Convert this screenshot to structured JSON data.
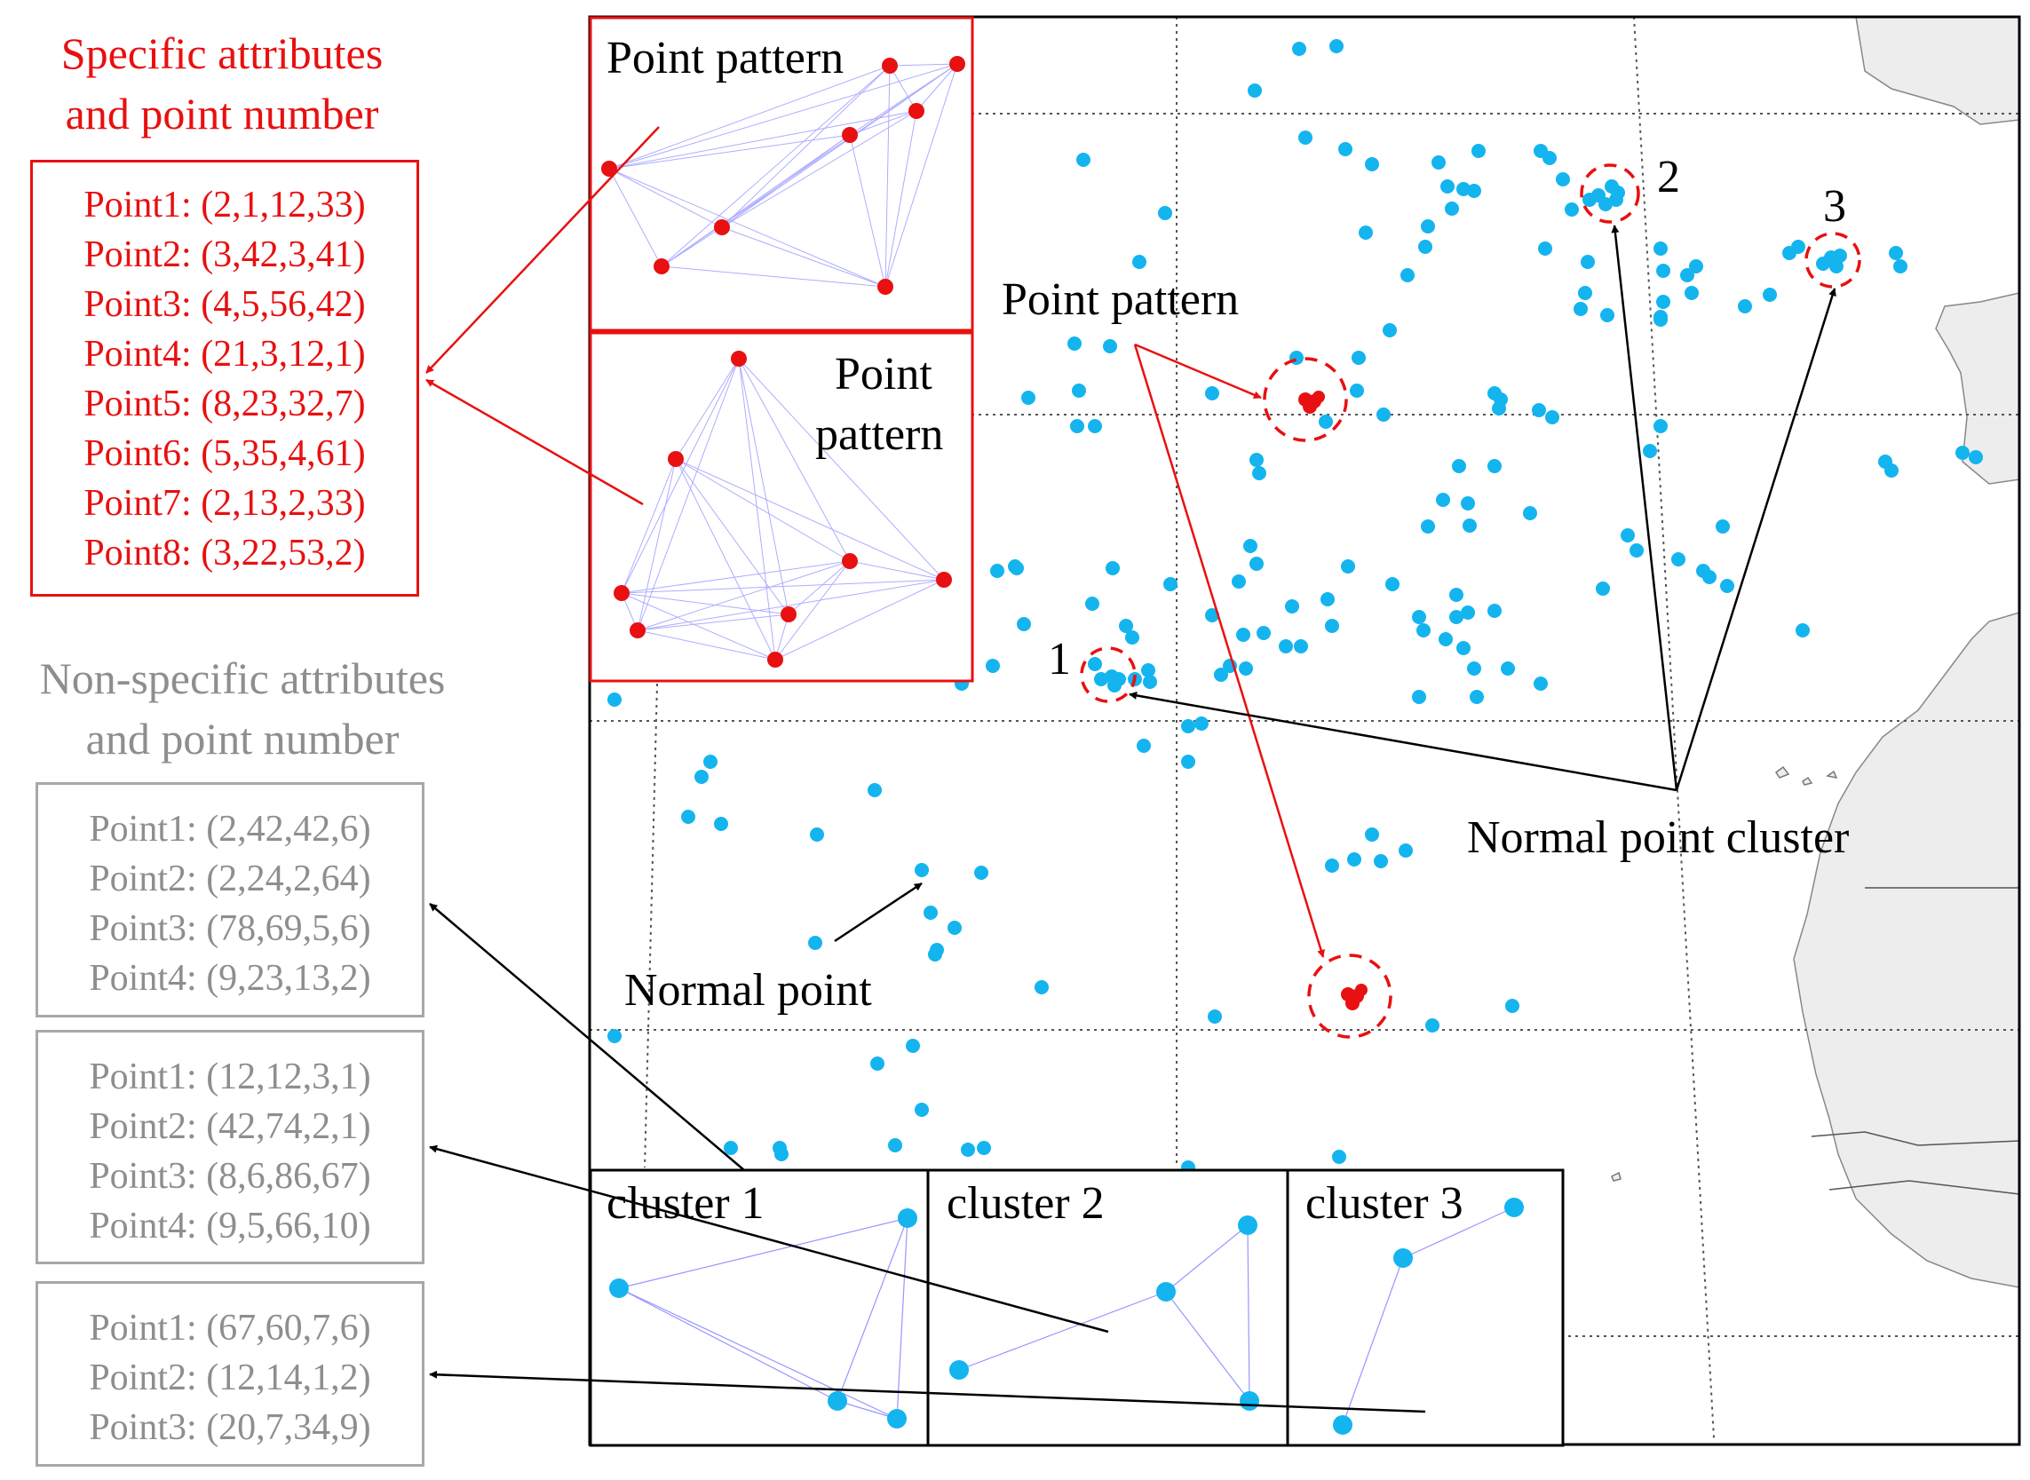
{
  "specific": {
    "title_line1": "Specific attributes",
    "title_line2": "and point number",
    "points": [
      "Point1: (2,1,12,33)",
      "Point2: (3,42,3,41)",
      "Point3: (4,5,56,42)",
      "Point4: (21,3,12,1)",
      "Point5: (8,23,32,7)",
      "Point6: (5,35,4,61)",
      "Point7: (2,13,2,33)",
      "Point8: (3,22,53,2)"
    ]
  },
  "nonspecific": {
    "title_line1": "Non-specific attributes",
    "title_line2": "and point number",
    "groups": [
      [
        "Point1: (2,42,42,6)",
        "Point2: (2,24,2,64)",
        "Point3: (78,69,5,6)",
        "Point4: (9,23,13,2)"
      ],
      [
        "Point1: (12,12,3,1)",
        "Point2: (42,74,2,1)",
        "Point3: (8,6,86,67)",
        "Point4: (9,5,66,10)"
      ],
      [
        "Point1: (67,60,7,6)",
        "Point2: (12,14,1,2)",
        "Point3: (20,7,34,9)"
      ]
    ]
  },
  "inset_labels": {
    "pattern_top": "Point pattern",
    "pattern_bottom_line1": "Point",
    "pattern_bottom_line2": "pattern",
    "cluster1": "cluster 1",
    "cluster2": "cluster 2",
    "cluster3": "cluster 3"
  },
  "map_labels": {
    "point_pattern": "Point pattern",
    "normal_point_cluster": "Normal point cluster",
    "normal_point": "Normal point",
    "cluster_num_1": "1",
    "cluster_num_2": "2",
    "cluster_num_3": "3"
  },
  "colors": {
    "pattern_red": "#e81010",
    "normal_blue": "#14b4ef",
    "land": "#ededed",
    "outline_gray": "#a8a8a8"
  }
}
